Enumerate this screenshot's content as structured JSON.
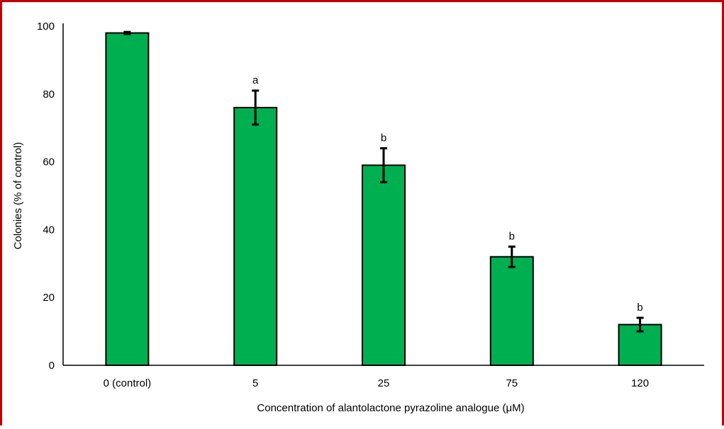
{
  "colors": {
    "frame_border": "#c00000",
    "bar_fill": "#00b050",
    "bar_edge": "#000000",
    "axis": "#000000"
  },
  "chart_data": {
    "type": "bar",
    "title": "",
    "xlabel": "Concentration of alantolactone pyrazoline analogue (μM)",
    "ylabel": "Colonies (% of control)",
    "categories": [
      "0 (control)",
      "5",
      "25",
      "75",
      "120"
    ],
    "values": [
      98,
      76,
      59,
      32,
      12
    ],
    "errors": [
      0.3,
      5,
      5,
      3,
      2
    ],
    "annotations": [
      "",
      "a",
      "b",
      "b",
      "b"
    ],
    "ylim": [
      0,
      100
    ],
    "yticks": [
      "0",
      "20",
      "40",
      "60",
      "80",
      "100"
    ],
    "grid": false,
    "legend": "none"
  }
}
